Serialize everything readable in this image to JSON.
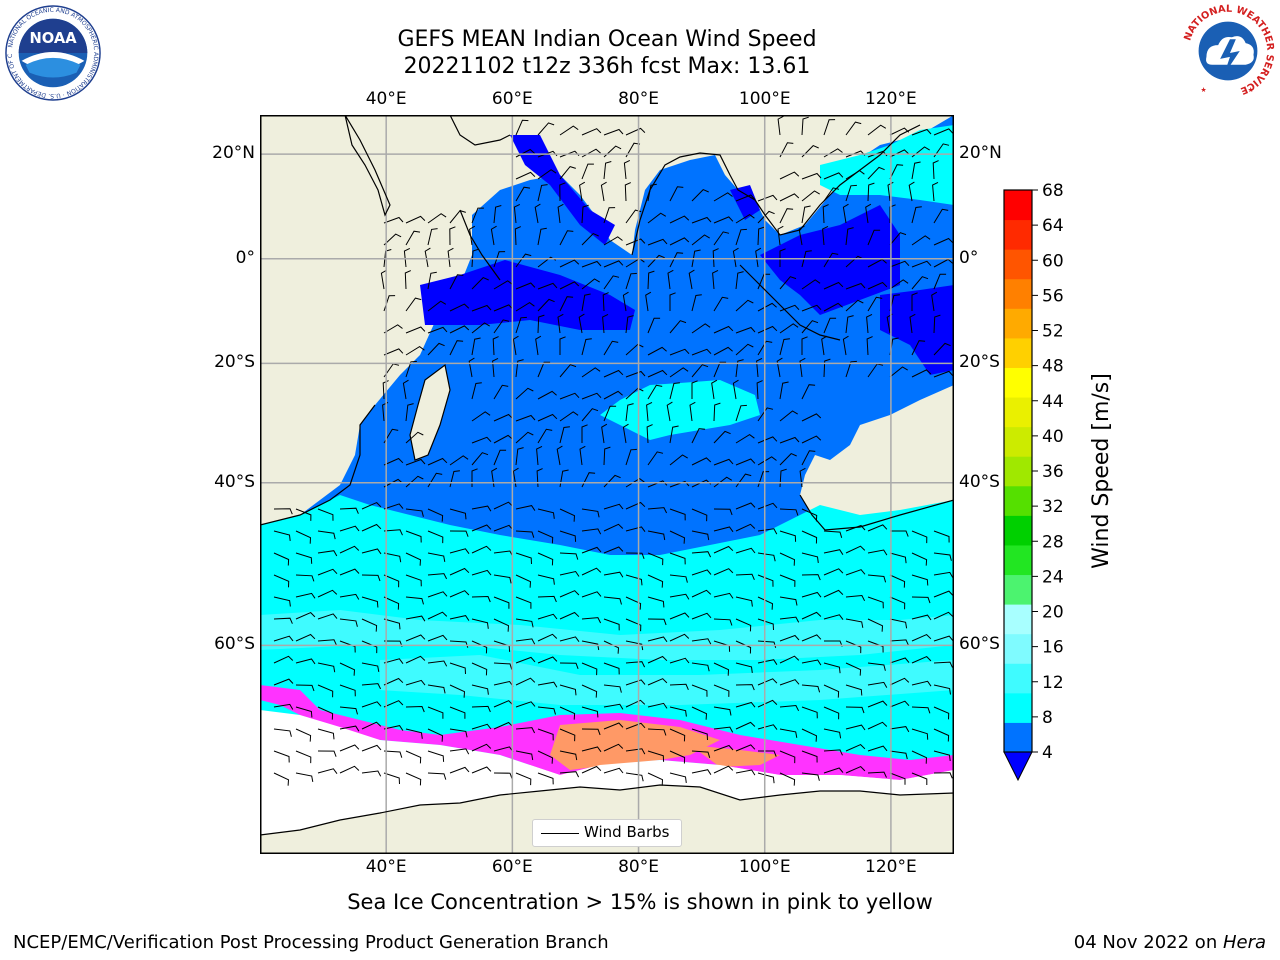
{
  "title": {
    "line1": "GEFS MEAN Indian Ocean Wind Speed",
    "line2": "20221102 t12z 336h fcst   Max: 13.61"
  },
  "map": {
    "lon_range": [
      20,
      130
    ],
    "lat_range": [
      -75,
      27
    ],
    "lon_ticks": [
      {
        "lon": 40,
        "label": "40°E"
      },
      {
        "lon": 60,
        "label": "60°E"
      },
      {
        "lon": 80,
        "label": "80°E"
      },
      {
        "lon": 100,
        "label": "100°E"
      },
      {
        "lon": 120,
        "label": "120°E"
      }
    ],
    "lat_ticks": [
      {
        "lat": 20,
        "label": "20°N"
      },
      {
        "lat": 0,
        "label": "0°"
      },
      {
        "lat": -20,
        "label": "20°S"
      },
      {
        "lat": -40,
        "label": "40°S"
      },
      {
        "lat": -60,
        "label": "60°S"
      }
    ],
    "colors": {
      "land": "#efefdd",
      "ocean_low": "#0000ff",
      "ocean_4": "#0073ff",
      "ocean_8": "#00ffff",
      "ocean_12": "#3ffbff",
      "ocean_16": "#7ffbff",
      "ice_pink": "#ff33ff",
      "ice_orange": "#ff9966",
      "grid": "#aaaaaa"
    }
  },
  "legend": {
    "label": "Wind Barbs"
  },
  "colorbar": {
    "label": "Wind Speed [m/s]",
    "ticks": [
      4,
      8,
      12,
      16,
      20,
      24,
      28,
      32,
      36,
      40,
      44,
      48,
      52,
      56,
      60,
      64,
      68
    ],
    "colors": [
      "#0073ff",
      "#00ffff",
      "#3ffbff",
      "#7ffbff",
      "#a8ffff",
      "#4cf36f",
      "#22e622",
      "#00d000",
      "#55e000",
      "#a0e800",
      "#cceb00",
      "#eaf000",
      "#ffff00",
      "#ffd000",
      "#ffaa00",
      "#ff8000",
      "#ff5500",
      "#ff2a00",
      "#ff0000"
    ],
    "under_color": "#0000ff"
  },
  "footer": {
    "note": "Sea Ice Concentration > 15% is shown in pink to yellow",
    "credit": "NCEP/EMC/Verification Post Processing Product Generation Branch",
    "date": "04 Nov 2022 on ",
    "machine": "Hera"
  },
  "logos": {
    "noaa_text": "NOAA",
    "noaa_ring": "NATIONAL OCEANIC AND ATMOSPHERIC ADMINISTRATION · U.S. DEPARTMENT OF COMMERCE",
    "nws_ring": "NATIONAL WEATHER SERVICE"
  }
}
